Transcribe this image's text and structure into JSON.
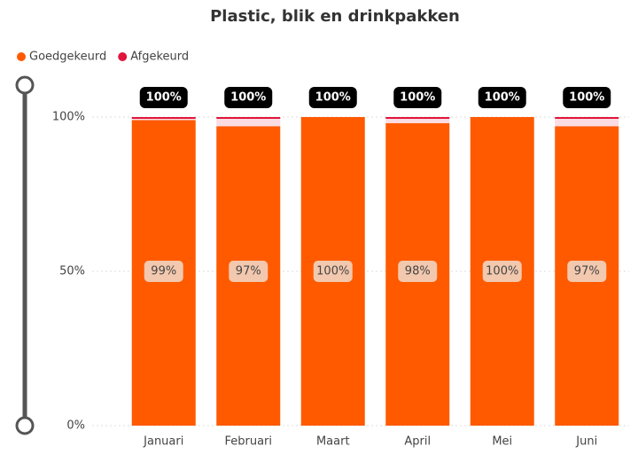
{
  "chart_data": {
    "type": "stacked-bar",
    "title": "Plastic, blik en drinkpakken",
    "categories": [
      "Januari",
      "Februari",
      "Maart",
      "April",
      "Mei",
      "Juni"
    ],
    "series": [
      {
        "name": "Goedgekeurd",
        "color": "#ff5a00",
        "values": [
          99,
          97,
          100,
          98,
          100,
          97
        ],
        "value_labels": [
          "99%",
          "97%",
          "100%",
          "98%",
          "100%",
          "97%"
        ]
      },
      {
        "name": "Afgekeurd",
        "color": "#e0143c",
        "values": [
          1,
          3,
          0,
          2,
          0,
          3
        ]
      }
    ],
    "totals": [
      100,
      100,
      100,
      100,
      100,
      100
    ],
    "total_labels": [
      "100%",
      "100%",
      "100%",
      "100%",
      "100%",
      "100%"
    ],
    "ylim": [
      0,
      100
    ],
    "yticks": [
      {
        "value": 0,
        "label": "0%"
      },
      {
        "value": 50,
        "label": "50%"
      },
      {
        "value": 100,
        "label": "100%"
      }
    ],
    "grid": true,
    "legend": "top-left"
  }
}
